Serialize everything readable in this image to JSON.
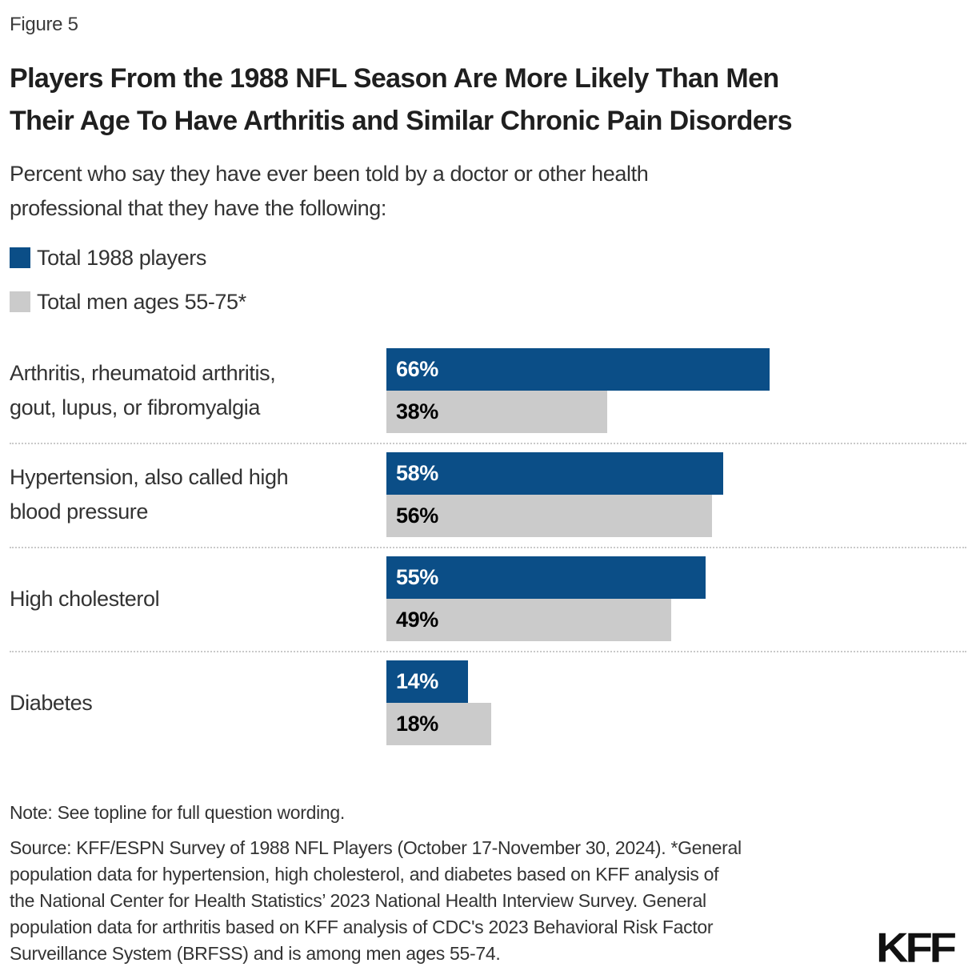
{
  "figure_label": "Figure 5",
  "header": {
    "title": "Players From the 1988 NFL Season Are More Likely Than Men Their Age To Have Arthritis and Similar Chronic Pain Disorders",
    "title_lines": [
      "Players From the 1988 NFL Season Are More Likely Than Men",
      "Their Age To Have Arthritis and Similar Chronic Pain Disorders"
    ],
    "subtitle": "Percent who say they have ever been told by a doctor or other health professional that they have the following:",
    "subtitle_lines": [
      "Percent who say they have ever been told by a doctor or other health",
      "professional that they have the following:"
    ]
  },
  "colors": {
    "players_blue": "#0b4e87",
    "men_gray": "#cbcbcb",
    "bar_value_on_blue": "#ffffff",
    "bar_value_on_gray": "#000000",
    "separator": "#c9c9c9",
    "logo": "#111111"
  },
  "legend": {
    "items": [
      {
        "label": "Total 1988 players",
        "color": "#0b4e87"
      },
      {
        "label": "Total men ages 55-75*",
        "color": "#cbcbcb"
      }
    ]
  },
  "chart_data": {
    "type": "bar",
    "orientation": "horizontal",
    "title": "Players From the 1988 NFL Season Are More Likely Than Men Their Age To Have Arthritis and Similar Chronic Pain Disorders",
    "subtitle": "Percent who say they have ever been told by a doctor or other health professional that they have the following:",
    "categories": [
      "Arthritis, rheumatoid arthritis, gout, lupus, or fibromyalgia",
      "Hypertension, also called high blood pressure",
      "High cholesterol",
      "Diabetes"
    ],
    "categories_display_lines": [
      [
        "Arthritis, rheumatoid arthritis,",
        "gout, lupus, or fibromyalgia"
      ],
      [
        "Hypertension, also called high",
        "blood pressure"
      ],
      [
        "High cholesterol"
      ],
      [
        "Diabetes"
      ]
    ],
    "series": [
      {
        "name": "Total 1988 players",
        "color": "#0b4e87",
        "text_color": "#ffffff",
        "values": [
          66,
          58,
          55,
          14
        ]
      },
      {
        "name": "Total men ages 55-75*",
        "color": "#cbcbcb",
        "text_color": "#000000",
        "values": [
          38,
          56,
          49,
          18
        ]
      }
    ],
    "value_suffix": "%",
    "xlim": [
      0,
      100
    ],
    "grid": false,
    "legend_position": "top-left",
    "data_labels": "inside-start"
  },
  "footer": {
    "note": "Note: See topline for full question wording.",
    "source": "Source: KFF/ESPN Survey of 1988 NFL Players (October 17-November 30, 2024). *General population data for hypertension, high cholesterol, and diabetes based on KFF analysis of the National Center for Health Statistics’ 2023 National Health Interview Survey. General population data for arthritis based on KFF analysis of CDC's 2023 Behavioral Risk Factor Surveillance System (BRFSS) and is among men ages 55-74.",
    "source_lines": [
      "Source: KFF/ESPN Survey of 1988 NFL Players (October 17-November 30, 2024). *General",
      "population data for hypertension, high cholesterol, and diabetes based on KFF analysis of",
      "the National Center for Health Statistics’ 2023 National Health Interview Survey. General",
      "population data for arthritis based on KFF analysis of CDC's 2023 Behavioral Risk Factor",
      "Surveillance System (BRFSS) and is among men ages 55-74."
    ],
    "logo_text": "KFF"
  }
}
